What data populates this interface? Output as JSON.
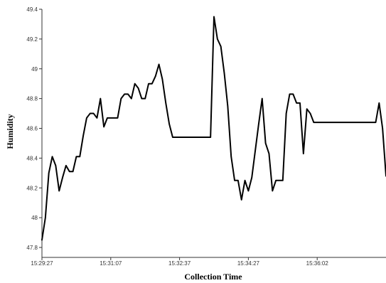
{
  "chart_data": {
    "type": "line",
    "title": "",
    "xlabel": "Collection Time",
    "ylabel": "Humidity",
    "ylim": [
      47.8,
      49.4
    ],
    "yticks": [
      47.8,
      48,
      48.2,
      48.4,
      48.6,
      48.8,
      49,
      49.2,
      49.4
    ],
    "ytick_labels": [
      "47.8",
      "48",
      "48.2",
      "48.4",
      "48.6",
      "48.8",
      "49",
      "49.2",
      "49.4"
    ],
    "xtick_labels": [
      "15:29:27",
      "15:31:07",
      "15:32:37",
      "15:34:27",
      "15:36:02"
    ],
    "xtick_index": [
      0,
      20,
      40,
      60,
      80
    ],
    "grid": false,
    "line_color": "#000000",
    "series": [
      {
        "values": [
          47.85,
          48.0,
          48.3,
          48.41,
          48.35,
          48.18,
          48.27,
          48.35,
          48.31,
          48.31,
          48.41,
          48.41,
          48.55,
          48.67,
          48.7,
          48.7,
          48.67,
          48.8,
          48.61,
          48.67,
          48.67,
          48.67,
          48.67,
          48.8,
          48.83,
          48.83,
          48.8,
          48.9,
          48.87,
          48.8,
          48.8,
          48.9,
          48.9,
          48.95,
          49.03,
          48.93,
          48.77,
          48.63,
          48.54,
          48.54,
          48.54,
          48.54,
          48.54,
          48.54,
          48.54,
          48.54,
          48.54,
          48.54,
          48.54,
          48.54,
          49.35,
          49.2,
          49.15,
          48.97,
          48.75,
          48.41,
          48.25,
          48.25,
          48.12,
          48.25,
          48.18,
          48.27,
          48.45,
          48.63,
          48.8,
          48.5,
          48.43,
          48.18,
          48.25,
          48.25,
          48.25,
          48.7,
          48.83,
          48.83,
          48.77,
          48.77,
          48.43,
          48.73,
          48.7,
          48.64,
          48.64,
          48.64,
          48.64,
          48.64,
          48.64,
          48.64,
          48.64,
          48.64,
          48.64,
          48.64,
          48.64,
          48.64,
          48.64,
          48.64,
          48.64,
          48.64,
          48.64,
          48.64,
          48.77,
          48.6,
          48.28
        ]
      }
    ]
  }
}
